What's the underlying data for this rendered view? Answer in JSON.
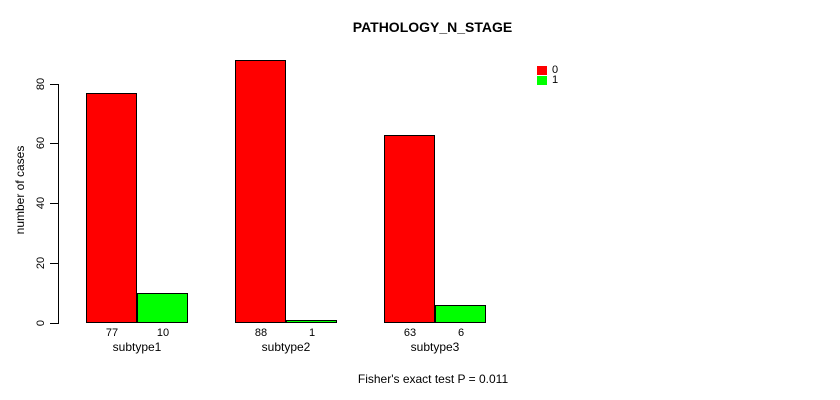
{
  "chart_data": {
    "type": "bar",
    "title": "PATHOLOGY_N_STAGE",
    "ylabel": "number of cases",
    "xlabel": "",
    "footer": "Fisher's exact test P = 0.011",
    "categories": [
      "subtype1",
      "subtype2",
      "subtype3"
    ],
    "series": [
      {
        "name": "0",
        "color": "#ff0000",
        "values": [
          77,
          88,
          63
        ]
      },
      {
        "name": "1",
        "color": "#00ff00",
        "values": [
          10,
          1,
          6
        ]
      }
    ],
    "value_labels": [
      [
        "77",
        "10"
      ],
      [
        "88",
        "1"
      ],
      [
        "63",
        "6"
      ]
    ],
    "yticks": [
      "0",
      "20",
      "40",
      "60",
      "80"
    ],
    "ylim": [
      0,
      80
    ],
    "grid": false,
    "legend_position": "top-right",
    "bar_border_color": "#000000",
    "background_color": "#ffffff"
  }
}
